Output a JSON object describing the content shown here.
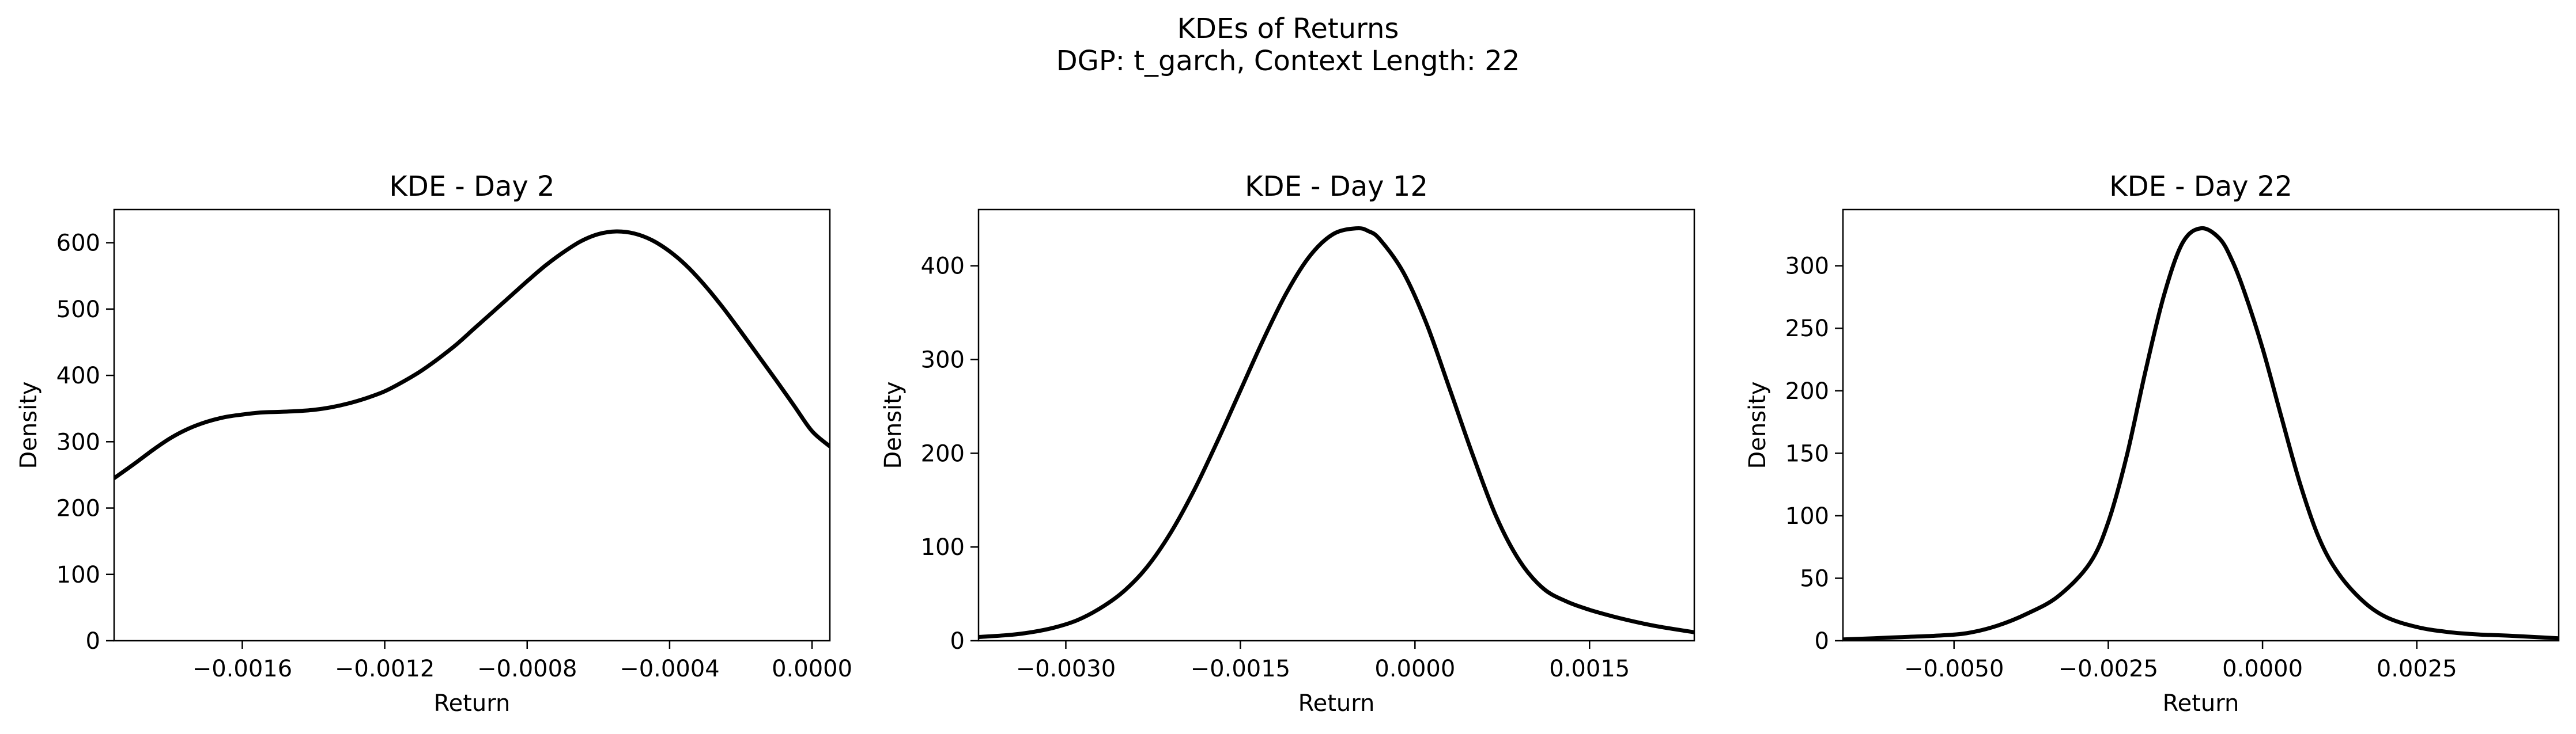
{
  "figure": {
    "title_line1": "KDEs of Returns",
    "title_line2": "DGP: t_garch, Context Length: 22"
  },
  "chart_data": [
    {
      "type": "line",
      "title": "KDE - Day 2",
      "xlabel": "Return",
      "ylabel": "Density",
      "xlim": [
        -0.00196,
        5e-05
      ],
      "ylim": [
        0,
        650
      ],
      "grid": false,
      "color": "#000000",
      "xticks": [
        -0.0016,
        -0.0012,
        -0.0008,
        -0.0004,
        0.0
      ],
      "xtick_labels": [
        "−0.0016",
        "−0.0012",
        "−0.0008",
        "−0.0004",
        "0.0000"
      ],
      "yticks": [
        0,
        100,
        200,
        300,
        400,
        500,
        600
      ],
      "ytick_labels": [
        "0",
        "100",
        "200",
        "300",
        "400",
        "500",
        "600"
      ],
      "x": [
        -0.00196,
        -0.0019,
        -0.00185,
        -0.0018,
        -0.00175,
        -0.0017,
        -0.00165,
        -0.0016,
        -0.00155,
        -0.0015,
        -0.00145,
        -0.0014,
        -0.00135,
        -0.0013,
        -0.00125,
        -0.0012,
        -0.00115,
        -0.0011,
        -0.00105,
        -0.001,
        -0.00095,
        -0.0009,
        -0.00085,
        -0.0008,
        -0.00075,
        -0.0007,
        -0.00065,
        -0.0006,
        -0.00055,
        -0.0005,
        -0.00045,
        -0.0004,
        -0.00035,
        -0.0003,
        -0.00025,
        -0.0002,
        -0.00015,
        -0.0001,
        -5e-05,
        0.0,
        5e-05
      ],
      "y": [
        245,
        268,
        288,
        306,
        320,
        330,
        337,
        341,
        344,
        345,
        346,
        348,
        352,
        358,
        366,
        376,
        390,
        406,
        425,
        446,
        470,
        494,
        518,
        542,
        565,
        585,
        602,
        613,
        617,
        614,
        604,
        587,
        564,
        535,
        502,
        466,
        429,
        392,
        354,
        316,
        293
      ]
    },
    {
      "type": "line",
      "title": "KDE - Day 12",
      "xlabel": "Return",
      "ylabel": "Density",
      "xlim": [
        -0.00375,
        0.0024
      ],
      "ylim": [
        0,
        460
      ],
      "grid": false,
      "color": "#000000",
      "xticks": [
        -0.003,
        -0.0015,
        0.0,
        0.0015
      ],
      "xtick_labels": [
        "−0.0030",
        "−0.0015",
        "0.0000",
        "0.0015"
      ],
      "yticks": [
        0,
        100,
        200,
        300,
        400
      ],
      "ytick_labels": [
        "0",
        "100",
        "200",
        "300",
        "400"
      ],
      "x": [
        -0.00375,
        -0.0035,
        -0.0033,
        -0.0031,
        -0.0029,
        -0.0027,
        -0.0025,
        -0.0023,
        -0.0021,
        -0.0019,
        -0.0017,
        -0.0015,
        -0.0013,
        -0.0011,
        -0.0009,
        -0.0007,
        -0.0005,
        -0.0004,
        -0.0003,
        -0.0001,
        0.0001,
        0.0003,
        0.0005,
        0.0007,
        0.0009,
        0.0011,
        0.0013,
        0.0015,
        0.0017,
        0.0019,
        0.0021,
        0.0024
      ],
      "y": [
        4,
        6,
        9,
        14,
        22,
        35,
        53,
        79,
        115,
        160,
        212,
        267,
        322,
        372,
        411,
        434,
        440,
        437,
        428,
        393,
        338,
        268,
        197,
        132,
        85,
        56,
        42,
        33,
        26,
        20,
        15,
        9
      ]
    },
    {
      "type": "line",
      "title": "KDE - Day 22",
      "xlabel": "Return",
      "ylabel": "Density",
      "xlim": [
        -0.0068,
        0.0048
      ],
      "ylim": [
        0,
        345
      ],
      "grid": false,
      "color": "#000000",
      "xticks": [
        -0.005,
        -0.0025,
        0.0,
        0.0025
      ],
      "xtick_labels": [
        "−0.0050",
        "−0.0025",
        "0.0000",
        "0.0025"
      ],
      "yticks": [
        0,
        50,
        100,
        150,
        200,
        250,
        300
      ],
      "ytick_labels": [
        "0",
        "50",
        "100",
        "150",
        "200",
        "250",
        "300"
      ],
      "x": [
        -0.0068,
        -0.0063,
        -0.0058,
        -0.0053,
        -0.0048,
        -0.0043,
        -0.0038,
        -0.0033,
        -0.0028,
        -0.0025,
        -0.0022,
        -0.0019,
        -0.0016,
        -0.0013,
        -0.001,
        -0.0007,
        -0.0005,
        -0.0003,
        0.0,
        0.0003,
        0.0006,
        0.0009,
        0.0012,
        0.0016,
        0.002,
        0.0025,
        0.003,
        0.0035,
        0.004,
        0.0048
      ],
      "y": [
        1,
        2,
        3,
        4,
        6,
        12,
        22,
        36,
        62,
        95,
        148,
        215,
        276,
        318,
        330,
        322,
        305,
        280,
        234,
        180,
        127,
        84,
        56,
        33,
        19,
        11,
        7,
        5,
        4,
        2
      ]
    }
  ]
}
